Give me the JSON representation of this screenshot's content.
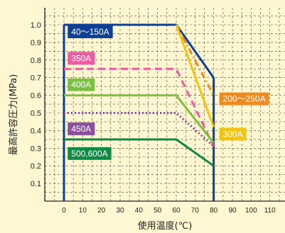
{
  "chart_data": {
    "type": "line",
    "title": "",
    "xlabel": "使用温度(℃)",
    "ylabel": "最高許容圧力(MPa)",
    "xlim": [
      -10,
      118
    ],
    "ylim": [
      0,
      1.1
    ],
    "x_ticks": [
      0,
      10,
      20,
      30,
      40,
      50,
      60,
      70,
      80,
      90,
      100,
      110
    ],
    "y_ticks": [
      0.1,
      0.2,
      0.3,
      0.4,
      0.5,
      0.6,
      0.7,
      0.8,
      0.9,
      1.0
    ],
    "y_tick_labels": [
      "0.1",
      "0.2",
      "0.3",
      "0.4",
      "0.5",
      "0.6",
      "0.7",
      "0.8",
      "0.9",
      "1.0"
    ],
    "grid": true,
    "series": [
      {
        "name": "40〜150A",
        "color": "#0d3f94",
        "style": "solid",
        "x": [
          0,
          60,
          80
        ],
        "y": [
          1.0,
          1.0,
          0.7
        ]
      },
      {
        "name": "200〜250A",
        "color": "#ee8a1e",
        "style": "dashdot",
        "x": [
          60,
          80
        ],
        "y": [
          1.0,
          0.6
        ]
      },
      {
        "name": "300A",
        "color": "#f1c40f",
        "style": "solid",
        "x": [
          60,
          80
        ],
        "y": [
          1.0,
          0.42
        ]
      },
      {
        "name": "350A",
        "color": "#ef5ba1",
        "style": "dashed",
        "x": [
          0,
          60,
          80
        ],
        "y": [
          0.75,
          0.75,
          0.31
        ]
      },
      {
        "name": "400A",
        "color": "#7ac142",
        "style": "solid",
        "x": [
          0,
          60,
          80
        ],
        "y": [
          0.6,
          0.6,
          0.33
        ]
      },
      {
        "name": "450A",
        "color": "#8b4f9e",
        "style": "dotted",
        "x": [
          0,
          60,
          80
        ],
        "y": [
          0.5,
          0.5,
          0.31
        ]
      },
      {
        "name": "500,600A",
        "color": "#0f8a45",
        "style": "solid",
        "x": [
          0,
          60,
          80
        ],
        "y": [
          0.35,
          0.35,
          0.2
        ]
      }
    ],
    "series_labels": [
      {
        "text": "40〜150A",
        "color": "#0d3f94",
        "anchor_x": 2,
        "anchor_y": 0.96
      },
      {
        "text": "350A",
        "color": "#ef5ba1",
        "anchor_x": 2,
        "anchor_y": 0.81
      },
      {
        "text": "400A",
        "color": "#7ac142",
        "anchor_x": 2,
        "anchor_y": 0.66
      },
      {
        "text": "450A",
        "color": "#8b4f9e",
        "anchor_x": 2,
        "anchor_y": 0.41
      },
      {
        "text": "500,600A",
        "color": "#0f8a45",
        "anchor_x": 2,
        "anchor_y": 0.27
      },
      {
        "text": "200〜250A",
        "color": "#ee8a1e",
        "anchor_x": 83,
        "anchor_y": 0.58
      },
      {
        "text": "300A",
        "color": "#f1c40f",
        "anchor_x": 83,
        "anchor_y": 0.38
      }
    ]
  }
}
